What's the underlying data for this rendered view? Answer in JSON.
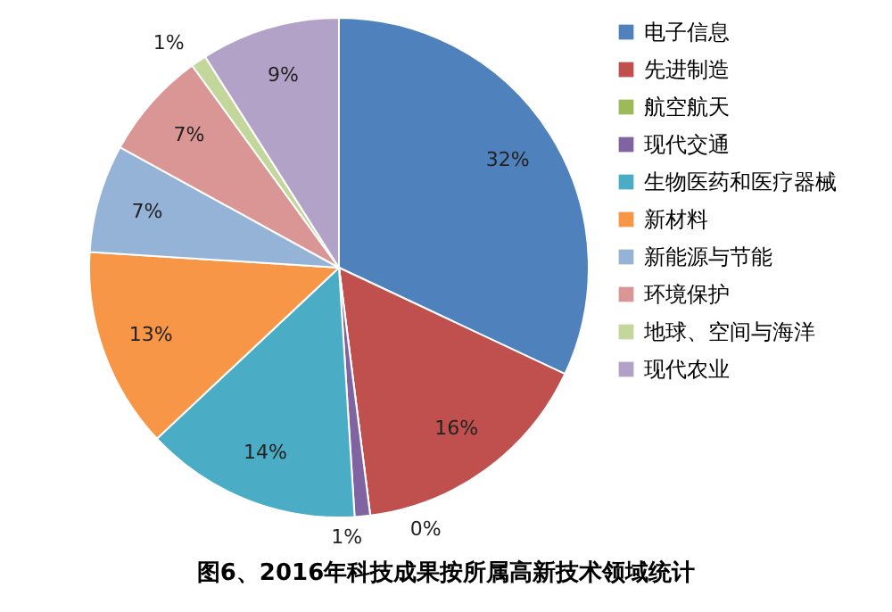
{
  "chart_data": {
    "type": "pie",
    "title": "图6、2016年科技成果按所属高新技术领域统计",
    "categories": [
      "电子信息",
      "先进制造",
      "航空航天",
      "现代交通",
      "生物医药和医疗器械",
      "新材料",
      "新能源与节能",
      "环境保护",
      "地球、空间与海洋",
      "现代农业"
    ],
    "values": [
      32,
      16,
      0,
      1,
      14,
      13,
      7,
      7,
      1,
      9
    ],
    "value_labels": [
      "32%",
      "16%",
      "0%",
      "1%",
      "14%",
      "13%",
      "7%",
      "7%",
      "1%",
      "9%"
    ],
    "colors": [
      "#4f81bd",
      "#c0504d",
      "#9bbb59",
      "#8064a2",
      "#4bacc6",
      "#f79646",
      "#95b3d7",
      "#d99694",
      "#c3d69b",
      "#b3a2c7"
    ],
    "legend": "right"
  }
}
